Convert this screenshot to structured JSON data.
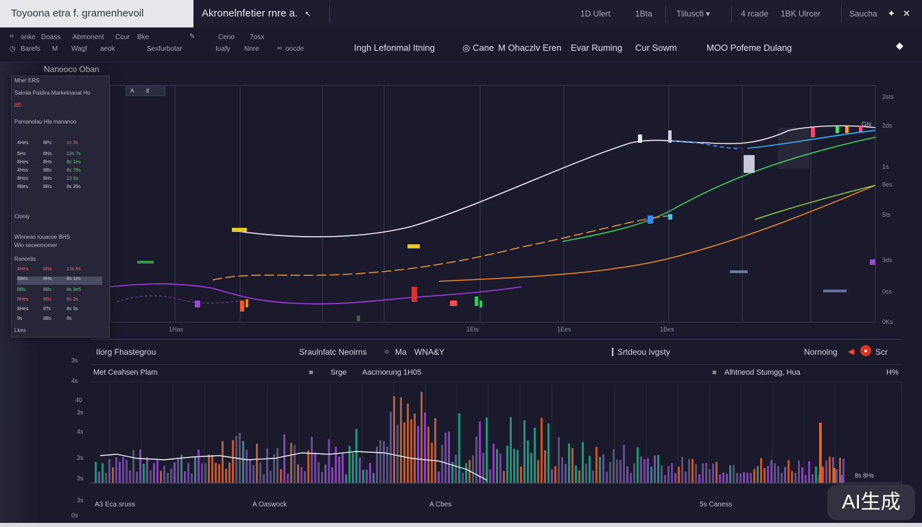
{
  "header": {
    "tab_active": "Toyoona etra f. gramenhevoil",
    "tab_2": "Akronelnfetier rnre a.",
    "items": [
      "1D Ulert",
      "1Bta",
      "Tiiluscfi",
      "4 rcade",
      "1BK Ulrcer",
      "Saucha"
    ]
  },
  "subbar": {
    "left_row1": [
      "onke",
      "Doass",
      "Abmonent",
      "Ccur",
      "Bke",
      "Ceno",
      "7osx"
    ],
    "left_row2": [
      "Barefs",
      "M",
      "Wagf",
      "aeok",
      "Sexfurbotar",
      "Iuafy",
      "Nnre",
      "oocde"
    ],
    "indicators": [
      "Ingh Lefonmal Itning",
      "Cane",
      "M Ohaczlv Eren",
      "Evar Ruming",
      "Cur Sowm",
      "MOO Pofeme Dulang"
    ]
  },
  "chart": {
    "panel_title": "Nanooco Oban",
    "x_labels": [
      "1Has",
      "1Ets",
      "1Ees",
      "1Bes"
    ],
    "y_labels": [
      "2sts",
      "2ds",
      "1s",
      "8es",
      "5ts",
      "3ds",
      "0ss",
      "0Ks"
    ],
    "legend_tag": "Ghi"
  },
  "sidepanel": {
    "title": "Mhe! ERS",
    "header1": "Salmla Paldira Marketnaoat Ho",
    "sub": "8D",
    "header2": "Pamanolau Hla mananoo",
    "rows_top": [
      [
        "4Hes",
        "8Ps",
        "1s 3s"
      ],
      [
        "5Hs",
        "8Ns",
        "13s 7s"
      ],
      [
        "8Hes",
        "8Hs",
        "8s 1es"
      ],
      [
        "4Hss",
        "8Bs",
        "8s 78s"
      ],
      [
        "8Hss",
        "8Hs",
        "13 8s"
      ],
      [
        "8Bes",
        "8Rs",
        "8s 35s"
      ]
    ],
    "mid_label": "Cloniy",
    "header3": "Wlnneas rouacoe BHS",
    "header3b": "Wio seceemomer",
    "label3": "Ranonlis",
    "rows_bot": [
      [
        "4Hes",
        "8Ns",
        "13s 8s"
      ],
      [
        "88es",
        "8Hs",
        "8s 1es"
      ],
      [
        "8Bs",
        "8Bs",
        "8s 3e5"
      ],
      [
        "8Hes",
        "8Bs",
        "8s 3s"
      ],
      [
        "8Hes",
        "8Ts",
        "8s 3s"
      ],
      [
        "9s",
        "8Bs",
        "8s"
      ]
    ],
    "footer": "Lkes",
    "mini_box": "A",
    "mini_box_val": "8"
  },
  "lower_toolbar": {
    "left": "Ilorg Fhastegrou",
    "middle": "Sraulnfatc Neoirns",
    "mode_a": "Ma",
    "mode_b": "WNA&Y",
    "right_status": "Srtdeou Ivgsty",
    "far_right_label": "Nornolng",
    "far_right_value": "Scr"
  },
  "volume": {
    "head_left": "Met Ceahsen Plam",
    "head_mid_a": "Srge",
    "head_mid_b": "Aacrnorung 1H05",
    "head_right": "Alhtneod Stumgg, Hua",
    "head_far_right": "H%",
    "y_labels": [
      "3s",
      "4s",
      "40",
      "3s",
      "4s",
      "3s",
      "3s",
      "3s",
      "0s"
    ],
    "foot": [
      "A3  Eca sruss",
      "A  Oaswock",
      "A  Cbes",
      "5s  Caness"
    ],
    "end_label": "8s 8Hs"
  },
  "watermark": "AI生成"
}
